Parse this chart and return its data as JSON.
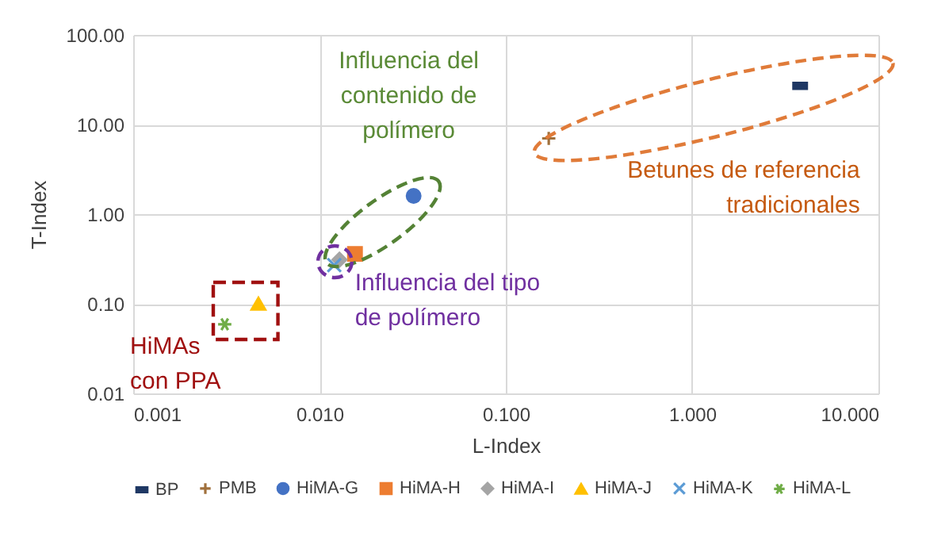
{
  "chart_data": {
    "type": "scatter",
    "xlabel": "L-Index",
    "ylabel": "T-Index",
    "log": "xy",
    "grid": true,
    "legend": "bottom",
    "xlim": [
      0.001,
      10
    ],
    "xticks": [
      {
        "value": 0.001,
        "label": "0.001"
      },
      {
        "value": 0.01,
        "label": "0.010"
      },
      {
        "value": 0.1,
        "label": "0.100"
      },
      {
        "value": 1,
        "label": "1.000"
      },
      {
        "value": 10,
        "label": "10.000"
      }
    ],
    "ylim": [
      0.01,
      100
    ],
    "yticks": [
      {
        "value": 0.01,
        "label": "0.01"
      },
      {
        "value": 0.1,
        "label": "0.10"
      },
      {
        "value": 1,
        "label": "1.00"
      },
      {
        "value": 10,
        "label": "10.00"
      },
      {
        "value": 100,
        "label": "100.00"
      }
    ],
    "series": [
      {
        "name": "BP",
        "color": "#1f3864",
        "x": [
          3.8
        ],
        "values": [
          27
        ]
      },
      {
        "name": "PMB",
        "color": "#a0703c",
        "x": [
          0.17
        ],
        "values": [
          7
        ]
      },
      {
        "name": "HiMA-G",
        "color": "#4472c4",
        "marker": "circle",
        "x": [
          0.032
        ],
        "values": [
          1.6
        ]
      },
      {
        "name": "HiMA-H",
        "color": "#ed7d31",
        "marker": "square",
        "x": [
          0.0155
        ],
        "values": [
          0.36
        ]
      },
      {
        "name": "HiMA-I",
        "color": "#a5a5a5",
        "marker": "diamond",
        "x": [
          0.0128
        ],
        "values": [
          0.31
        ]
      },
      {
        "name": "HiMA-J",
        "color": "#ffc000",
        "marker": "triangle",
        "x": [
          0.0047
        ],
        "values": [
          0.1
        ]
      },
      {
        "name": "HiMA-K",
        "color": "#5b9bd5",
        "marker": "cross",
        "x": [
          0.012
        ],
        "values": [
          0.27
        ]
      },
      {
        "name": "HiMA-L",
        "color": "#70ad47",
        "x": [
          0.0031
        ],
        "values": [
          0.059
        ]
      }
    ],
    "annotations": [
      "Influencia del\ncontenido de\npolímero",
      "Betunes de referencia\ntradicionales",
      "Influencia del tipo\nde polímero",
      "HiMAs\ncon PPA"
    ]
  }
}
